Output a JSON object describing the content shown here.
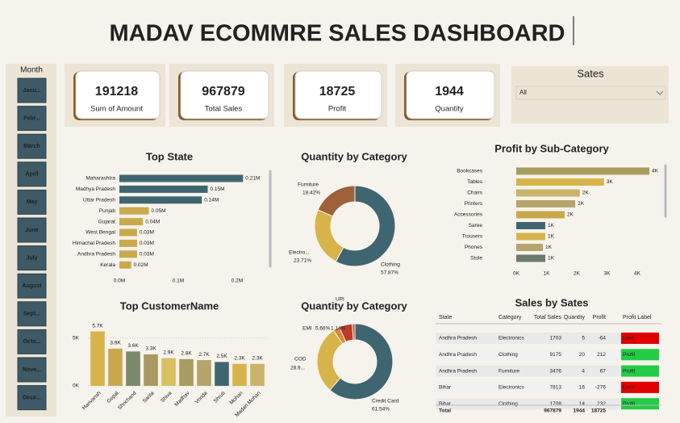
{
  "header": {
    "title": "MADAV ECOMMRE SALES DASHBOARD"
  },
  "month_slicer": {
    "title": "Month",
    "items": [
      "Janu...",
      "Febr...",
      "March",
      "April",
      "May",
      "June",
      "July",
      "August",
      "Sept...",
      "Octo...",
      "Nove...",
      "Dece..."
    ]
  },
  "kpis": [
    {
      "value": 191218,
      "label": "Sum of Amount"
    },
    {
      "value": 967879,
      "label": "Total Sales"
    },
    {
      "value": 18725,
      "label": "Profit"
    },
    {
      "value": 1944,
      "label": "Quantity"
    }
  ],
  "state_slicer": {
    "title": "Sates",
    "value": "All"
  },
  "chart_data": [
    {
      "type": "bar",
      "horizontal": true,
      "title": "Top State",
      "categories": [
        "Maharashtra",
        "Madhya Pradesh",
        "Uttar Pradesh",
        "Punjab",
        "Gujarat",
        "West Bengal",
        "Himachal Pradesh",
        "Andhra Pradesh",
        "Kerala"
      ],
      "values": [
        210000,
        150000,
        140000,
        50000,
        40000,
        30000,
        30000,
        30000,
        20000
      ],
      "value_labels": [
        "0.21M",
        "0.15M",
        "0.14M",
        "0.05M",
        "0.04M",
        "0.03M",
        "0.03M",
        "0.03M",
        "0.02M"
      ],
      "colors": [
        "#3f6670",
        "#3f6670",
        "#3f6670",
        "#c9a94a",
        "#c9a94a",
        "#c9a94a",
        "#c9a94a",
        "#c9a94a",
        "#c9a94a"
      ],
      "xlim": [
        0,
        220000
      ],
      "xticks": [
        {
          "value": 0,
          "label": "0.0M"
        },
        {
          "value": 100000,
          "label": "0.1M"
        },
        {
          "value": 200000,
          "label": "0.2M"
        }
      ]
    },
    {
      "type": "pie",
      "donut": true,
      "title": "Quantity by Category",
      "categories": [
        "Clothing",
        "Electro...",
        "Furniture"
      ],
      "values": [
        57.87,
        23.71,
        18.42
      ],
      "value_labels": [
        "57.87%",
        "23.71%",
        "18.42%"
      ],
      "colors": [
        "#3f6670",
        "#d6b44a",
        "#a0603a"
      ]
    },
    {
      "type": "bar",
      "horizontal": true,
      "title": "Profit by Sub-Category",
      "categories": [
        "Bookcases",
        "Tables",
        "Chairs",
        "Printers",
        "Accessories",
        "Saree",
        "Trousers",
        "Phones",
        "Stole"
      ],
      "values": [
        4400,
        2900,
        2100,
        1950,
        1600,
        960,
        960,
        880,
        960
      ],
      "value_labels": [
        "4K",
        "3K",
        "2K",
        "2K",
        "2K",
        "1K",
        "1K",
        "1K",
        "1K"
      ],
      "colors": [
        "#a79d5f",
        "#d6b44a",
        "#c9b36a",
        "#b5a46b",
        "#c8a84d",
        "#3f6670",
        "#d6b44a",
        "#b5a46b",
        "#6b7a6a"
      ],
      "xlim": [
        0,
        4500
      ],
      "xticks": [
        {
          "value": 0,
          "label": "0K"
        },
        {
          "value": 1000,
          "label": "1K"
        },
        {
          "value": 2000,
          "label": "2K"
        },
        {
          "value": 3000,
          "label": "3K"
        },
        {
          "value": 4000,
          "label": "4K"
        }
      ]
    },
    {
      "type": "bar",
      "title": "Top CustomerName",
      "categories": [
        "Harivansh",
        "Gopal",
        "Shrichand",
        "Sarita",
        "Shiva",
        "Madhav",
        "Vrinda",
        "Shruti",
        "Mohan",
        "Madan Mohan"
      ],
      "values": [
        5700,
        3900,
        3600,
        3300,
        2900,
        2800,
        2700,
        2500,
        2300,
        2300
      ],
      "value_labels": [
        "5.7K",
        "3.9K",
        "3.6K",
        "3.3K",
        "2.9K",
        "2.8K",
        "2.7K",
        "2.5K",
        "2.3K",
        "2.3K"
      ],
      "colors": [
        "#d6b44a",
        "#c9a84d",
        "#7a8a6a",
        "#a89a60",
        "#d6c060",
        "#a79d5f",
        "#b5a46b",
        "#3f6670",
        "#d6b44a",
        "#c9b36a"
      ],
      "ylim": [
        0,
        6000
      ],
      "yticks": [
        {
          "value": 0,
          "label": "0K"
        },
        {
          "value": 5000,
          "label": "5K"
        }
      ]
    },
    {
      "type": "pie",
      "donut": true,
      "title": "Quantity by Category",
      "categories": [
        "Credit Card",
        "COD",
        null,
        "EMI",
        "UPI"
      ],
      "values": [
        61.54,
        28.9,
        2.76,
        5.66,
        1.14
      ],
      "value_labels": [
        "61.54%",
        "28.9...",
        null,
        "5.66%",
        "1.14%"
      ],
      "colors": [
        "#3f6670",
        "#d6b44a",
        "#d98a3a",
        "#c0392b",
        "#a0603a"
      ]
    }
  ],
  "table": {
    "title": "Sales by Sates",
    "columns": [
      "State",
      "Category",
      "Total Sales",
      "Quantity",
      "Profit",
      "Profit Label"
    ],
    "rows": [
      [
        "Andhra Pradesh",
        "Electronics",
        1703,
        5,
        -64,
        "Loss"
      ],
      [
        "Andhra Pradesh",
        "Clothing",
        9175,
        20,
        212,
        "Profit"
      ],
      [
        "Andhra Pradesh",
        "Furniture",
        3476,
        4,
        67,
        "Profit"
      ],
      [
        "Bihar",
        "Electronics",
        7813,
        16,
        -276,
        "Loss"
      ],
      [
        "Bihar",
        "Clothing",
        1708,
        14,
        232,
        "Profit"
      ]
    ],
    "total": [
      "Total",
      967879,
      1944,
      18725
    ]
  }
}
